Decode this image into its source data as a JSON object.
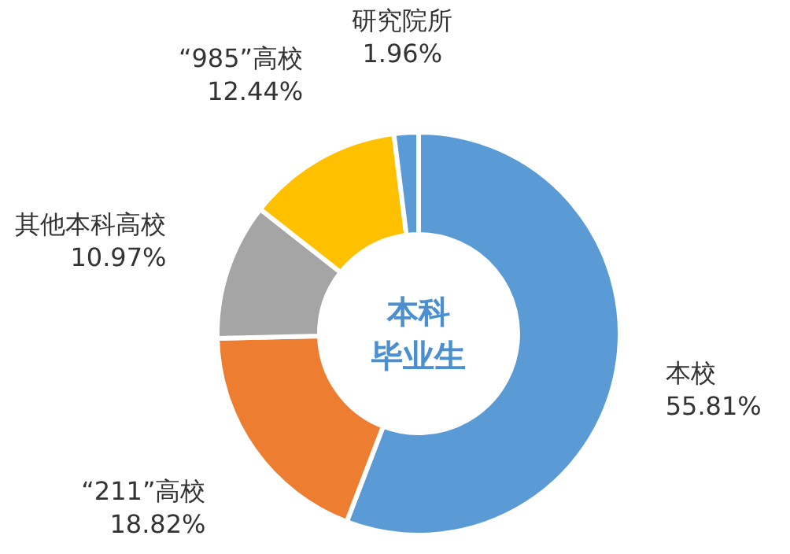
{
  "chart_data": {
    "type": "donut",
    "title": "本科毕业生",
    "categories": [
      "本校",
      "“211”高校",
      "其他本科高校",
      "“985”高校",
      "研究院所"
    ],
    "values": [
      55.81,
      18.82,
      10.97,
      12.44,
      1.96
    ],
    "value_labels": [
      "55.81%",
      "18.82%",
      "10.97%",
      "12.44%",
      "1.96%"
    ],
    "colors": [
      "#5b9bd5",
      "#ed7d31",
      "#a5a5a5",
      "#ffc000",
      "#5b9bd5"
    ]
  }
}
